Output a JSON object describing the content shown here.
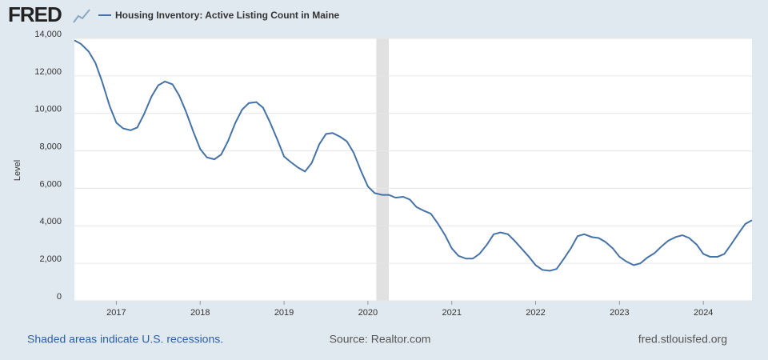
{
  "logo": "FRED",
  "chart_data": {
    "type": "line",
    "y_label": "Level",
    "x": [
      2016.5,
      2016.58,
      2016.67,
      2016.75,
      2016.83,
      2016.92,
      2017.0,
      2017.08,
      2017.17,
      2017.25,
      2017.33,
      2017.42,
      2017.5,
      2017.58,
      2017.67,
      2017.75,
      2017.83,
      2017.92,
      2018.0,
      2018.08,
      2018.17,
      2018.25,
      2018.33,
      2018.42,
      2018.5,
      2018.58,
      2018.67,
      2018.75,
      2018.83,
      2018.92,
      2019.0,
      2019.08,
      2019.17,
      2019.25,
      2019.33,
      2019.42,
      2019.5,
      2019.58,
      2019.67,
      2019.75,
      2019.83,
      2019.92,
      2020.0,
      2020.08,
      2020.17,
      2020.25,
      2020.33,
      2020.42,
      2020.5,
      2020.58,
      2020.67,
      2020.75,
      2020.83,
      2020.92,
      2021.0,
      2021.08,
      2021.17,
      2021.25,
      2021.33,
      2021.42,
      2021.5,
      2021.58,
      2021.67,
      2021.75,
      2021.83,
      2021.92,
      2022.0,
      2022.08,
      2022.17,
      2022.25,
      2022.33,
      2022.42,
      2022.5,
      2022.58,
      2022.67,
      2022.75,
      2022.83,
      2022.92,
      2023.0,
      2023.08,
      2023.17,
      2023.25,
      2023.33,
      2023.42,
      2023.5,
      2023.58,
      2023.67,
      2023.75,
      2023.83,
      2023.92,
      2024.0,
      2024.08,
      2024.17,
      2024.25,
      2024.33,
      2024.42,
      2024.5,
      2024.58
    ],
    "series": [
      {
        "name": "Housing Inventory: Active Listing Count in Maine",
        "color": "#4572a7",
        "values": [
          13900,
          13700,
          13300,
          12700,
          11700,
          10400,
          9500,
          9200,
          9100,
          9250,
          9950,
          10900,
          11500,
          11700,
          11550,
          10950,
          10100,
          9000,
          8100,
          7650,
          7550,
          7800,
          8500,
          9500,
          10200,
          10550,
          10600,
          10300,
          9550,
          8600,
          7700,
          7400,
          7100,
          6900,
          7350,
          8350,
          8900,
          8950,
          8750,
          8500,
          7900,
          6900,
          6100,
          5750,
          5650,
          5650,
          5500,
          5550,
          5400,
          5000,
          4800,
          4650,
          4150,
          3500,
          2800,
          2400,
          2250,
          2250,
          2500,
          3000,
          3550,
          3650,
          3550,
          3200,
          2800,
          2350,
          1900,
          1650,
          1600,
          1700,
          2200,
          2800,
          3450,
          3550,
          3400,
          3350,
          3150,
          2800,
          2350,
          2100,
          1900,
          2000,
          2300,
          2550,
          2900,
          3200,
          3400,
          3500,
          3350,
          3000,
          2500,
          2350,
          2350,
          2500,
          3000,
          3600,
          4100,
          4300
        ]
      }
    ],
    "recessions": [
      {
        "start": 2020.1,
        "end": 2020.25
      }
    ],
    "xlim": [
      2016.5,
      2024.58
    ],
    "xticks": [
      2017,
      2018,
      2019,
      2020,
      2021,
      2022,
      2023,
      2024
    ],
    "ylim": [
      0,
      14000
    ],
    "yticks": [
      0,
      {
        "value": 2000,
        "label": "2,000"
      },
      {
        "value": 4000,
        "label": "4,000"
      },
      {
        "value": 6000,
        "label": "6,000"
      },
      {
        "value": 8000,
        "label": "8,000"
      },
      {
        "value": 10000,
        "label": "10,000"
      },
      {
        "value": 12000,
        "label": "12,000"
      },
      {
        "value": 14000,
        "label": "14,000"
      }
    ],
    "grid": true,
    "note": "Shaded areas indicate U.S. recessions.",
    "source": "Source: Realtor.com",
    "site": "fred.stlouisfed.org"
  }
}
